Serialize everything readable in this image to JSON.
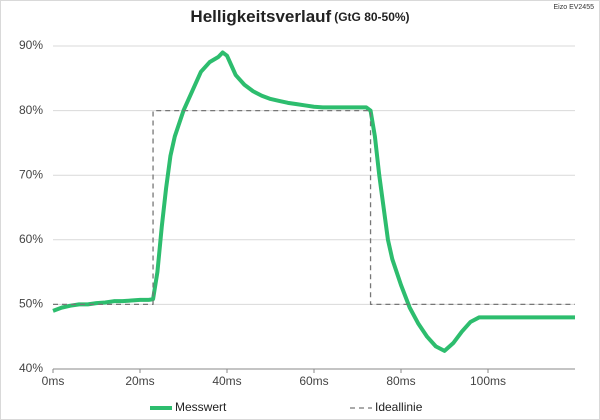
{
  "chart_data": {
    "type": "line",
    "title": "Helligkeitsverlauf",
    "subtitle": "(GtG 80-50%)",
    "annotation": "Eizo EV2455",
    "xlim": [
      0,
      120
    ],
    "ylim": [
      40,
      90
    ],
    "xticks": [
      {
        "value": 0,
        "label": "0ms"
      },
      {
        "value": 20,
        "label": "20ms"
      },
      {
        "value": 40,
        "label": "40ms"
      },
      {
        "value": 60,
        "label": "60ms"
      },
      {
        "value": 80,
        "label": "80ms"
      },
      {
        "value": 100,
        "label": "100ms"
      }
    ],
    "yticks": [
      {
        "value": 40,
        "label": "40%"
      },
      {
        "value": 50,
        "label": "50%"
      },
      {
        "value": 60,
        "label": "60%"
      },
      {
        "value": 70,
        "label": "70%"
      },
      {
        "value": 80,
        "label": "80%"
      },
      {
        "value": 90,
        "label": "90%"
      }
    ],
    "grid": true,
    "legend": "bottom",
    "series": [
      {
        "name": "Messwert",
        "color": "#2dbd6e",
        "style": "solid",
        "x": [
          0,
          2,
          4,
          6,
          8,
          10,
          12,
          14,
          16,
          18,
          20,
          22,
          23,
          24,
          25,
          26,
          27,
          28,
          30,
          32,
          34,
          36,
          38,
          39,
          40,
          41,
          42,
          44,
          46,
          48,
          50,
          52,
          54,
          56,
          58,
          60,
          62,
          64,
          66,
          68,
          70,
          72,
          73,
          74,
          75,
          76,
          77,
          78,
          80,
          82,
          84,
          86,
          88,
          90,
          92,
          94,
          96,
          98,
          100,
          105,
          110,
          115,
          120
        ],
        "values": [
          49,
          49.5,
          49.8,
          50,
          50,
          50.2,
          50.3,
          50.5,
          50.5,
          50.6,
          50.7,
          50.7,
          50.8,
          55,
          62,
          68,
          73,
          76,
          80,
          83,
          86,
          87.5,
          88.3,
          89,
          88.5,
          87,
          85.5,
          84,
          83,
          82.3,
          81.8,
          81.5,
          81.2,
          81,
          80.8,
          80.6,
          80.5,
          80.5,
          80.5,
          80.5,
          80.5,
          80.5,
          80,
          76,
          70,
          65,
          60,
          57,
          53,
          49.5,
          47,
          45,
          43.5,
          42.8,
          44,
          45.8,
          47.3,
          48,
          48,
          48,
          48,
          48,
          48
        ]
      },
      {
        "name": "Ideallinie",
        "color": "#777777",
        "style": "dashed",
        "x": [
          0,
          23,
          23,
          73,
          73,
          120
        ],
        "values": [
          50,
          50,
          80,
          80,
          50,
          50
        ]
      }
    ]
  }
}
